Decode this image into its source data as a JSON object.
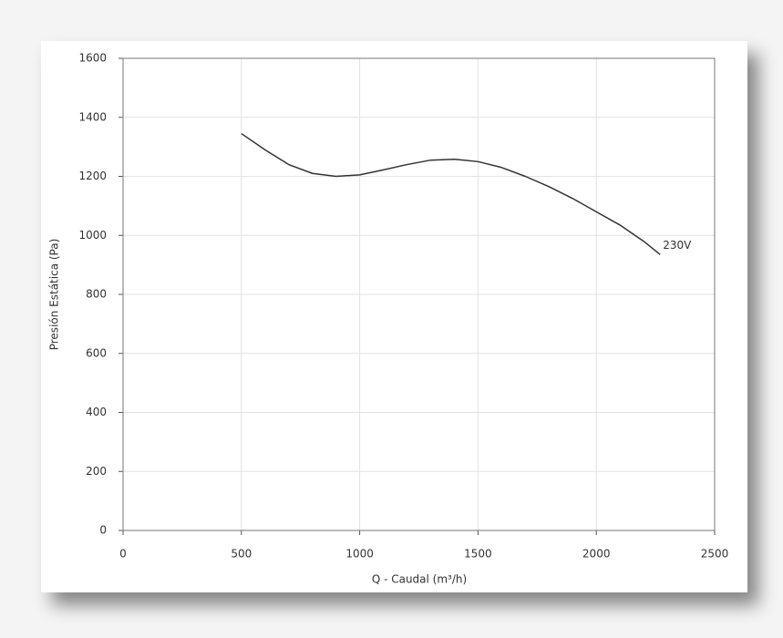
{
  "chart_data": {
    "type": "line",
    "x_label": "Q - Caudal (m³/h)",
    "y_label": "Presión Estática (Pa)",
    "x": [
      500,
      600,
      700,
      800,
      900,
      1000,
      1100,
      1200,
      1300,
      1400,
      1500,
      1600,
      1700,
      1800,
      1900,
      2000,
      2100,
      2200,
      2270
    ],
    "series": [
      {
        "name": "230V",
        "color": "#333333",
        "values": [
          1345,
          1290,
          1240,
          1210,
          1200,
          1205,
          1222,
          1240,
          1255,
          1258,
          1250,
          1230,
          1200,
          1165,
          1125,
          1080,
          1035,
          980,
          935
        ]
      }
    ],
    "xlim": [
      0,
      2500
    ],
    "xticks": [
      0,
      500,
      1000,
      1500,
      2000,
      2500
    ],
    "ylim": [
      0,
      1600
    ],
    "yticks": [
      0,
      200,
      400,
      600,
      800,
      1000,
      1200,
      1400,
      1600
    ],
    "grid": true
  }
}
